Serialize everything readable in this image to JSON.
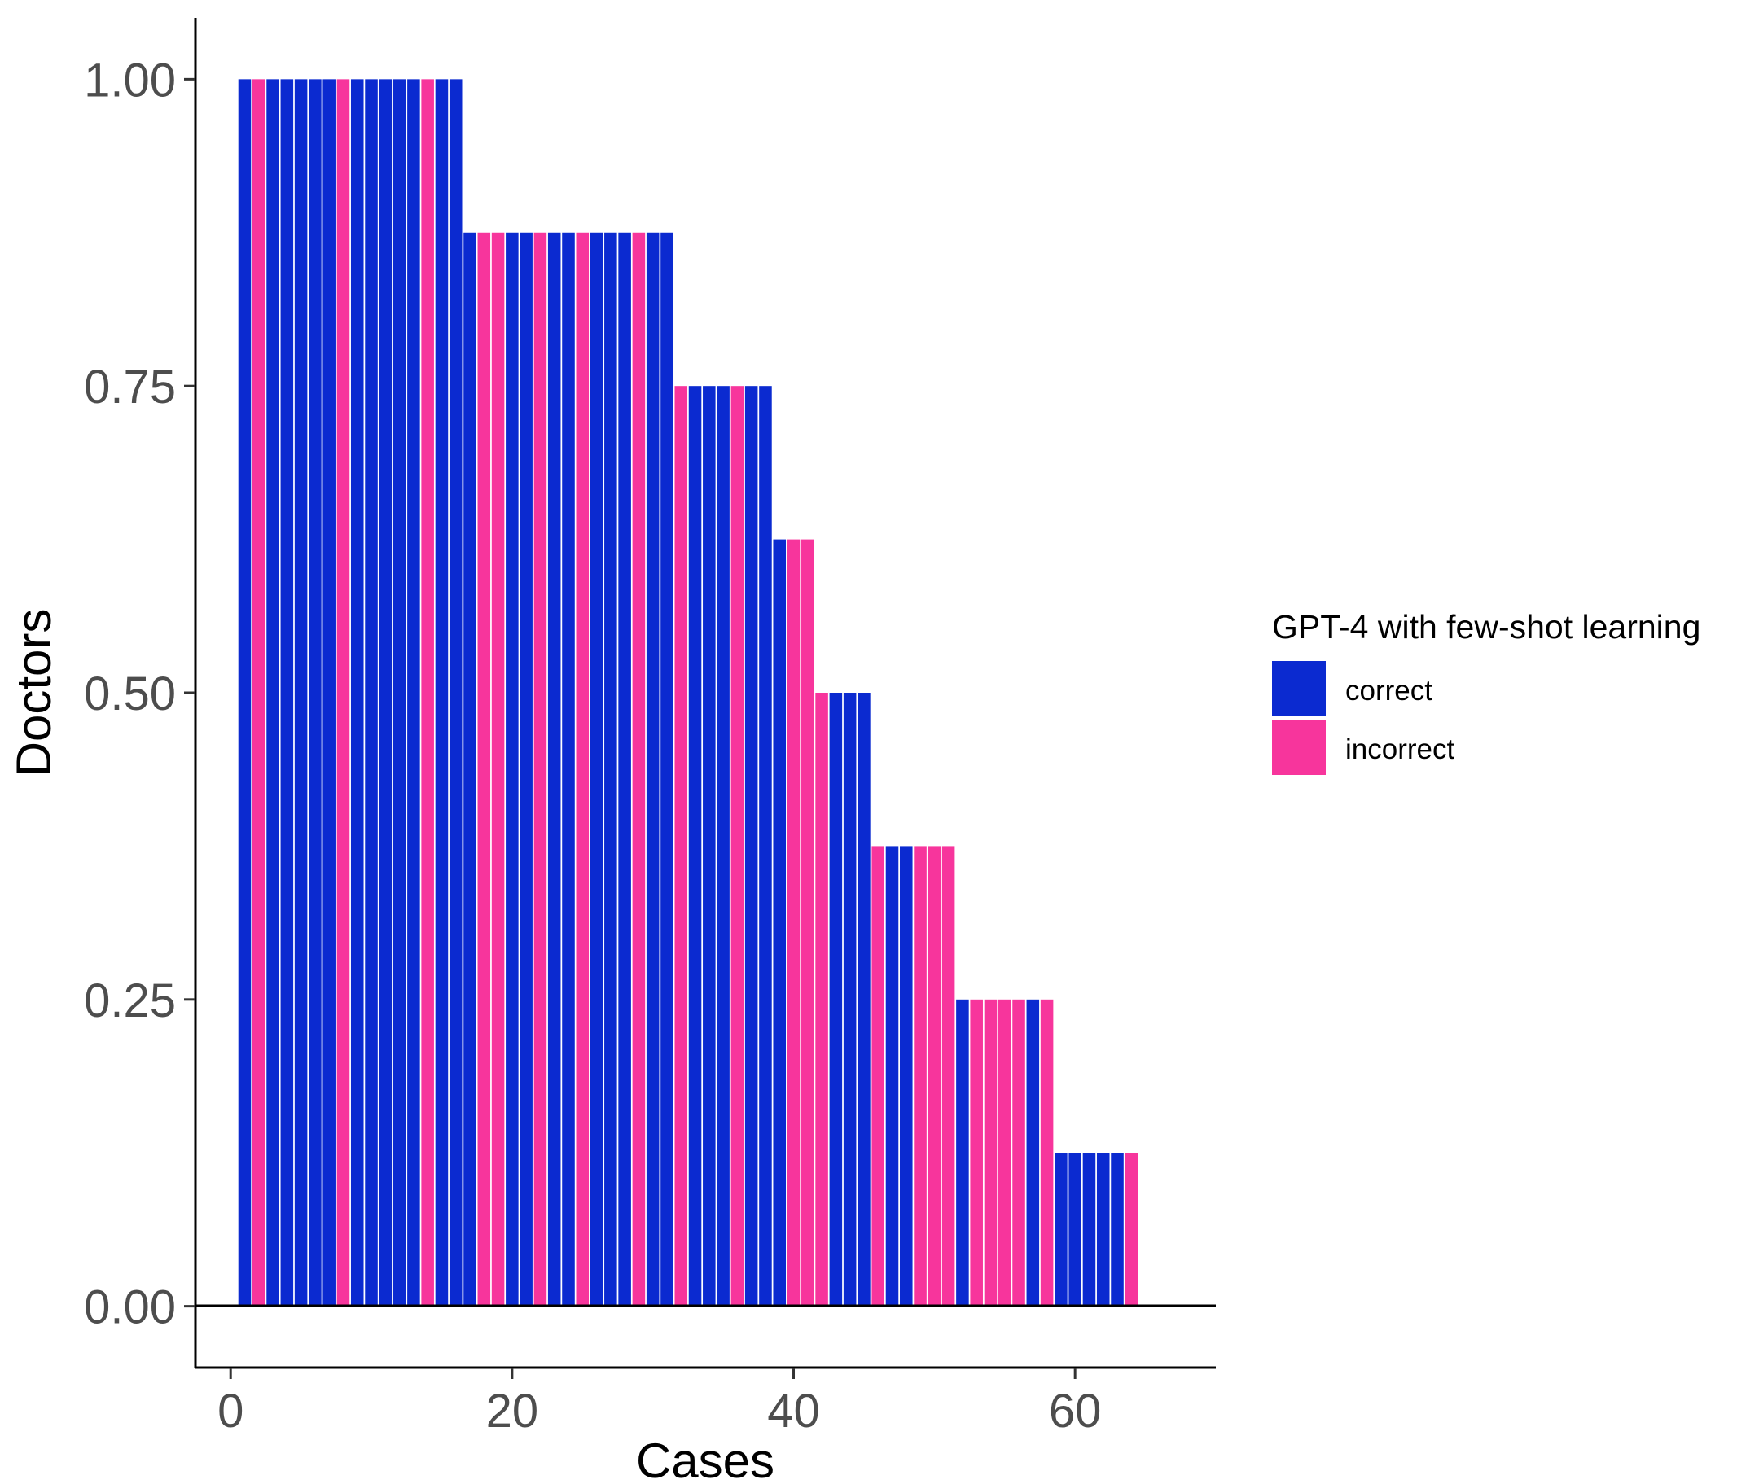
{
  "chart_data": {
    "type": "bar",
    "xlabel": "Cases",
    "ylabel": "Doctors",
    "xlim": [
      -2.5,
      70
    ],
    "ylim": [
      -0.05,
      1.05
    ],
    "x_ticks": [
      0,
      20,
      40,
      60
    ],
    "y_ticks": [
      0,
      0.25,
      0.5,
      0.75,
      1
    ],
    "y_tick_labels": [
      "0.00",
      "0.25",
      "0.50",
      "0.75",
      "1.00"
    ],
    "x_tick_labels": [
      "0",
      "20",
      "40",
      "60"
    ],
    "grid": false,
    "legend": {
      "title": "GPT-4 with few-shot learning",
      "position": "right",
      "entries": [
        {
          "key": "correct",
          "label": "correct",
          "color": "#0b2ad0"
        },
        {
          "key": "incorrect",
          "label": "incorrect",
          "color": "#f7359c"
        }
      ]
    },
    "groups": [
      {
        "y": 1.0,
        "start": 1,
        "pattern": "cicccccicccccicc"
      },
      {
        "y": 0.875,
        "start": 17,
        "pattern": "ciicciccicccicc"
      },
      {
        "y": 0.75,
        "start": 32,
        "pattern": "icccicc"
      },
      {
        "y": 0.625,
        "start": 39,
        "pattern": "cii"
      },
      {
        "y": 0.5,
        "start": 42,
        "pattern": "iccc"
      },
      {
        "y": 0.375,
        "start": 46,
        "pattern": "icciii"
      },
      {
        "y": 0.25,
        "start": 52,
        "pattern": "ciiiici"
      },
      {
        "y": 0.125,
        "start": 59,
        "pattern": "ccccci"
      }
    ]
  }
}
